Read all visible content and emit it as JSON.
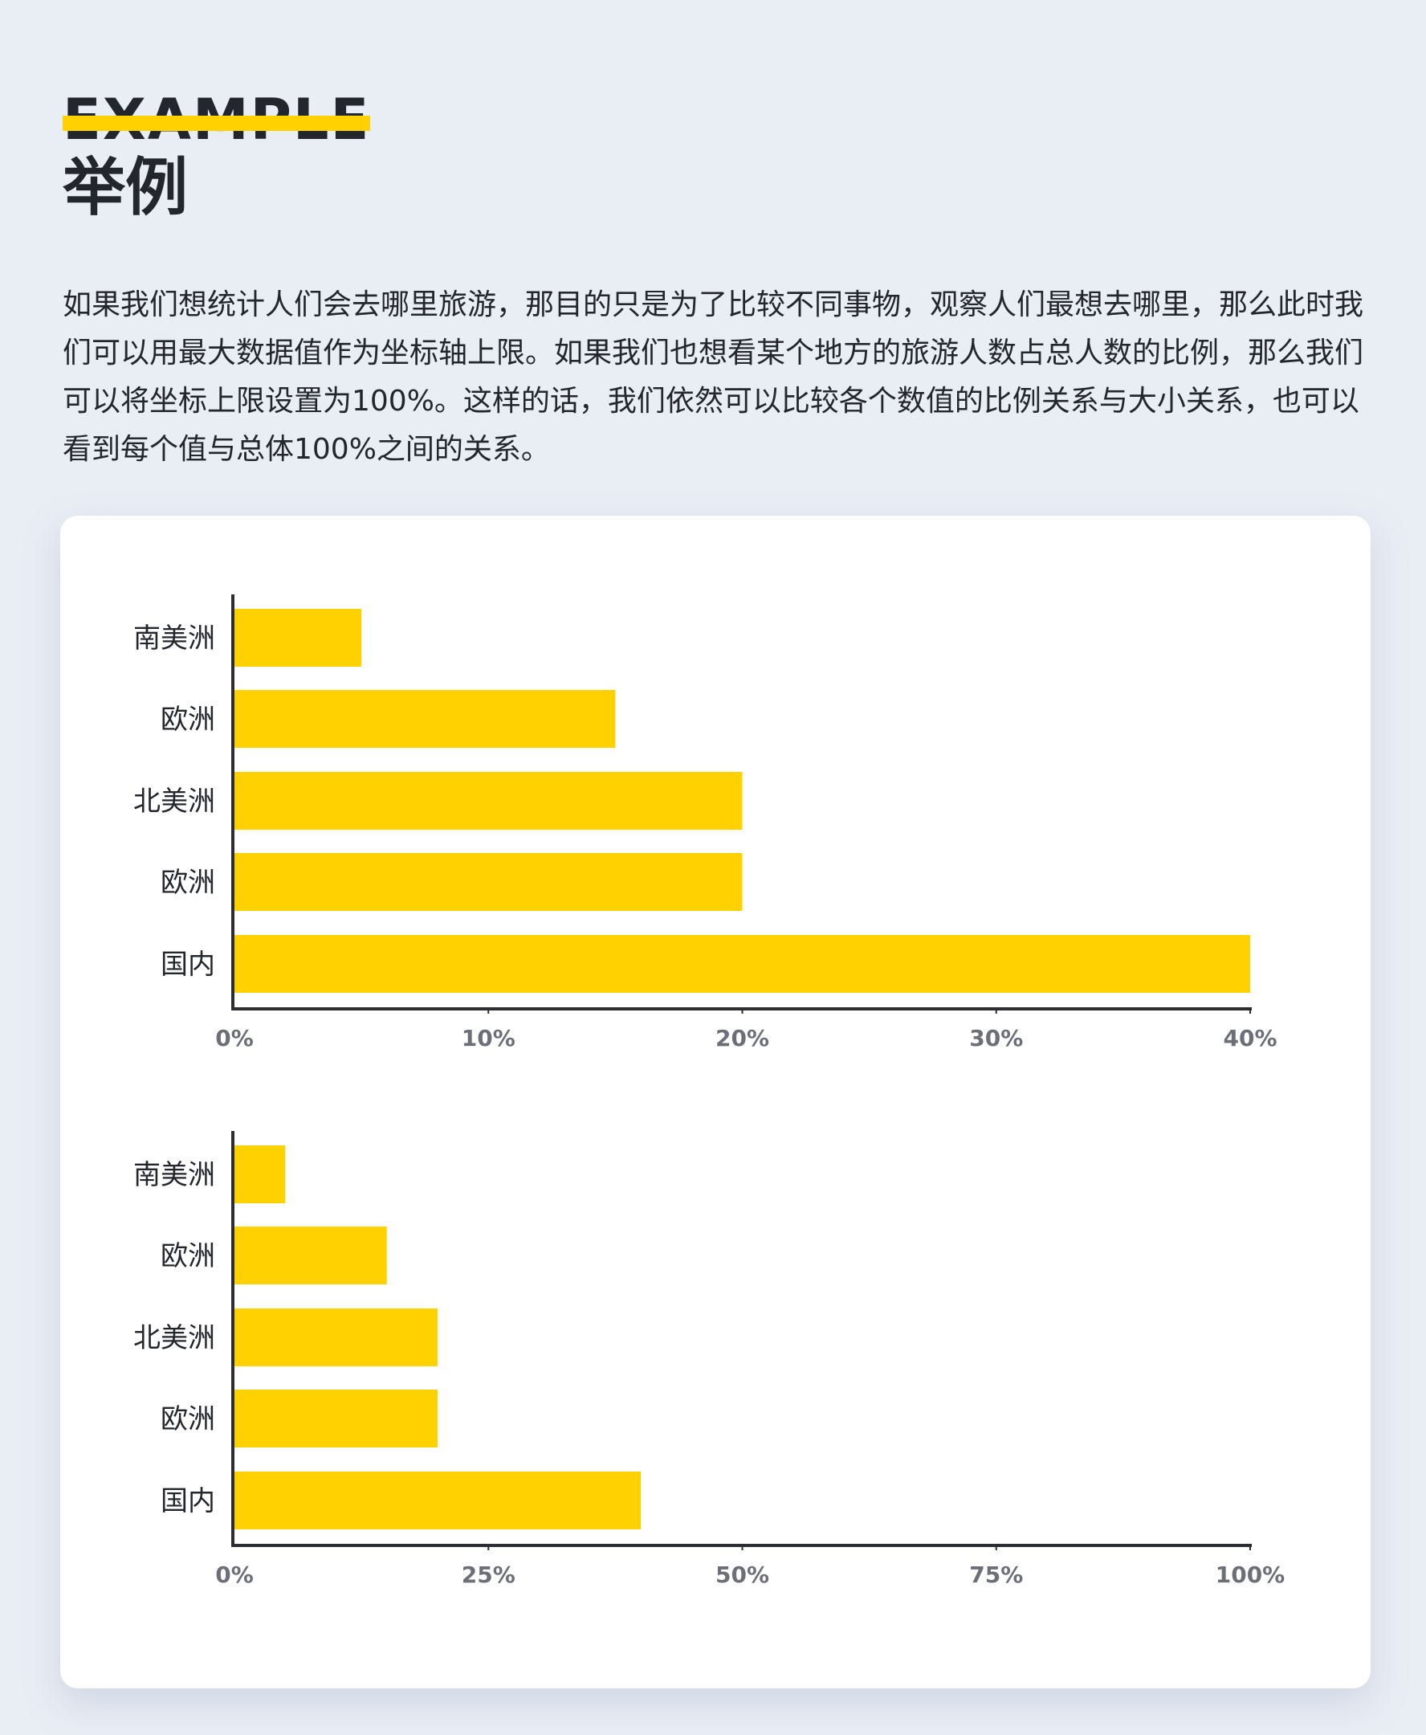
{
  "header": {
    "eyebrow": "EXAMPLE",
    "title": "举例"
  },
  "description": "如果我们想统计人们会去哪里旅游，那目的只是为了比较不同事物，观察人们最想去哪里，那么此时我们可以用最大数据值作为坐标轴上限。如果我们也想看某个地方的旅游人数占总人数的比例，那么我们可以将坐标上限设置为100%。这样的话，我们依然可以比较各个数值的比例关系与大小关系，也可以看到每个值与总体100%之间的关系。",
  "colors": {
    "accent": "#ffd100",
    "background": "#e9edf4",
    "card": "#ffffff",
    "axis": "#2b2d33",
    "tick_text": "#6c6f78"
  },
  "chart_data": [
    {
      "type": "bar",
      "orientation": "horizontal",
      "categories": [
        "南美洲",
        "欧洲",
        "北美洲",
        "欧洲",
        "国内"
      ],
      "values": [
        5,
        15,
        20,
        20,
        40
      ],
      "xlim": [
        0,
        40
      ],
      "xticks": [
        "0%",
        "10%",
        "20%",
        "30%",
        "40%"
      ],
      "grid": false
    },
    {
      "type": "bar",
      "orientation": "horizontal",
      "categories": [
        "南美洲",
        "欧洲",
        "北美洲",
        "欧洲",
        "国内"
      ],
      "values": [
        5,
        15,
        20,
        20,
        40
      ],
      "xlim": [
        0,
        100
      ],
      "xticks": [
        "0%",
        "25%",
        "50%",
        "75%",
        "100%"
      ],
      "grid": false
    }
  ]
}
